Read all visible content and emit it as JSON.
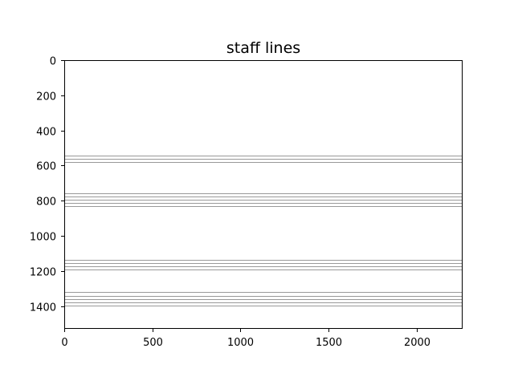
{
  "chart_data": {
    "type": "image",
    "title": "staff lines",
    "xlabel": "",
    "ylabel": "",
    "xlim": [
      0,
      2260
    ],
    "ylim": [
      1530,
      0
    ],
    "y_inverted": true,
    "grid": false,
    "x_ticks": [
      0,
      500,
      1000,
      1500,
      2000
    ],
    "y_ticks": [
      0,
      200,
      400,
      600,
      800,
      1000,
      1200,
      1400
    ],
    "x_tick_labels": [
      "0",
      "500",
      "1000",
      "1500",
      "2000"
    ],
    "y_tick_labels": [
      "0",
      "200",
      "400",
      "600",
      "800",
      "1000",
      "1200",
      "1400"
    ],
    "line_color": "#999999",
    "staff_line_y": [
      545,
      563,
      581,
      756,
      775,
      794,
      814,
      833,
      1136,
      1155,
      1174,
      1193,
      1322,
      1341,
      1360,
      1379,
      1398
    ],
    "background_color": "#ffffff"
  }
}
